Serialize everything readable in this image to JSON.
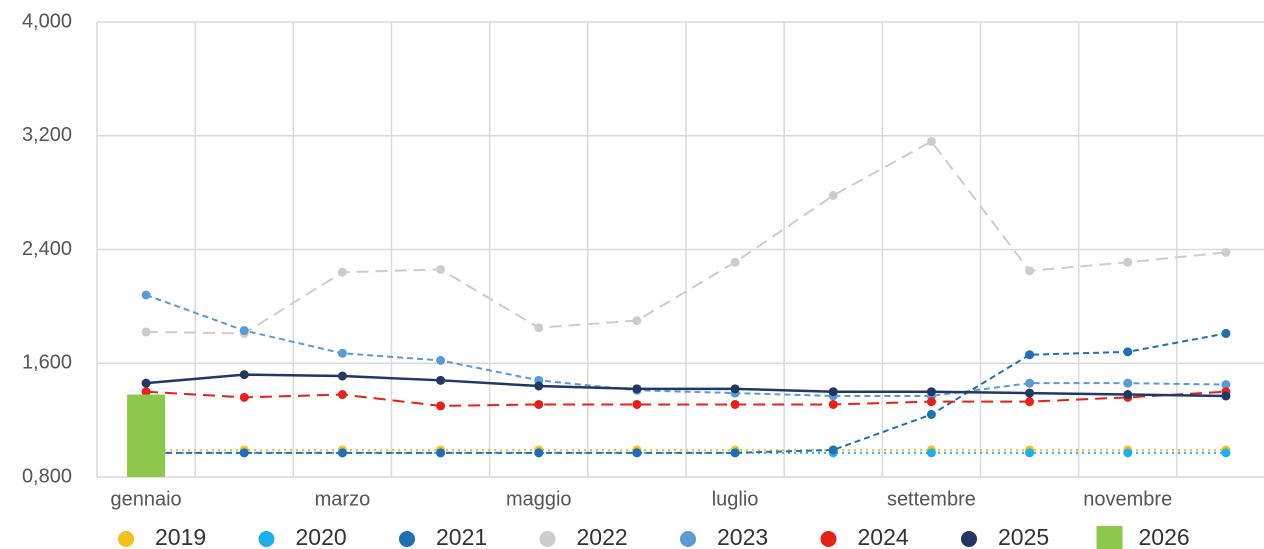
{
  "chart_data": {
    "type": "line",
    "categories": [
      "gennaio",
      null,
      "marzo",
      null,
      "maggio",
      null,
      "luglio",
      null,
      "settembre",
      null,
      "novembre",
      null
    ],
    "ylim": [
      0.8,
      4.0
    ],
    "yticks": [
      {
        "value": 0.8,
        "label": "0,800"
      },
      {
        "value": 1.6,
        "label": "1,600"
      },
      {
        "value": 2.4,
        "label": "2,400"
      },
      {
        "value": 3.2,
        "label": "3,200"
      },
      {
        "value": 4.0,
        "label": "4,000"
      }
    ],
    "grid": true,
    "legend": "bottom",
    "series": [
      {
        "name": "2019",
        "color": "#f5c01a",
        "style": "dotted",
        "values": [
          0.99,
          0.99,
          0.99,
          0.99,
          0.99,
          0.99,
          0.99,
          0.99,
          0.99,
          0.99,
          0.99,
          0.99
        ]
      },
      {
        "name": "2020",
        "color": "#1cb0e8",
        "style": "dotted",
        "values": [
          0.97,
          0.97,
          0.97,
          0.97,
          0.97,
          0.97,
          0.97,
          0.97,
          0.97,
          0.97,
          0.97,
          0.97
        ]
      },
      {
        "name": "2021",
        "color": "#1f6fb5",
        "style": "dashed",
        "values": [
          0.97,
          0.97,
          0.97,
          0.97,
          0.97,
          0.97,
          0.97,
          0.99,
          1.24,
          1.66,
          1.68,
          1.81
        ]
      },
      {
        "name": "2022",
        "color": "#cccccc",
        "style": "longdash",
        "values": [
          1.82,
          1.81,
          2.24,
          2.26,
          1.85,
          1.9,
          2.31,
          2.78,
          3.16,
          2.25,
          2.31,
          2.38
        ]
      },
      {
        "name": "2023",
        "color": "#5b9bd5",
        "style": "dashed",
        "values": [
          2.08,
          1.83,
          1.67,
          1.62,
          1.48,
          1.41,
          1.39,
          1.37,
          1.37,
          1.46,
          1.46,
          1.45
        ]
      },
      {
        "name": "2024",
        "color": "#e8201a",
        "style": "longdash",
        "values": [
          1.4,
          1.36,
          1.38,
          1.3,
          1.31,
          1.31,
          1.31,
          1.31,
          1.33,
          1.33,
          1.36,
          1.4
        ]
      },
      {
        "name": "2025",
        "color": "#203864",
        "style": "solid",
        "values": [
          1.46,
          1.52,
          1.51,
          1.48,
          1.44,
          1.42,
          1.42,
          1.4,
          1.4,
          1.39,
          1.38,
          1.37
        ]
      },
      {
        "name": "2026",
        "color": "#8cc84b",
        "kind": "bar",
        "values": [
          1.38,
          null,
          null,
          null,
          null,
          null,
          null,
          null,
          null,
          null,
          null,
          null
        ]
      }
    ]
  }
}
